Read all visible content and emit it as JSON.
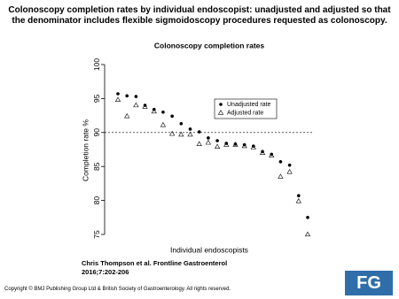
{
  "header": {
    "title": "Colonoscopy completion rates by individual endoscopist: unadjusted and adjusted so that the denominator includes flexible sigmoidoscopy procedures requested as colonoscopy."
  },
  "chart_data": {
    "type": "scatter",
    "title": "Colonoscopy completion rates",
    "x_label": "Individual endoscopists",
    "y_label": "Completion rate %",
    "categories": [
      null,
      null,
      null,
      null,
      null,
      null,
      null,
      null,
      null,
      null,
      null,
      null,
      null,
      null,
      null,
      null,
      null,
      null,
      null,
      null,
      null,
      null
    ],
    "series": [
      {
        "name": "Unadjusted rate",
        "color": "#000000",
        "marker": "circle",
        "values": [
          95.7,
          95.4,
          95.3,
          94.0,
          93.4,
          93.0,
          92.4,
          91.3,
          90.5,
          90.1,
          89.2,
          88.8,
          88.4,
          88.3,
          88.2,
          88.0,
          87.2,
          86.8,
          85.7,
          85.2,
          80.7,
          77.5
        ]
      },
      {
        "name": "Adjusted rate",
        "color": "#000000",
        "marker": "triangle",
        "values": [
          94.8,
          92.4,
          94.0,
          93.8,
          93.1,
          91.1,
          89.8,
          89.7,
          89.7,
          88.3,
          88.5,
          87.9,
          88.2,
          88.2,
          88.0,
          87.8,
          87.0,
          86.6,
          83.5,
          84.2,
          79.9,
          75.0
        ]
      }
    ],
    "ylim": [
      74,
      101
    ],
    "yticks": [
      75,
      80,
      85,
      90,
      95,
      100
    ],
    "hline": 90,
    "legend": "top right"
  },
  "citation": "Chris Thompson et al. Frontline Gastroenterol 2016;7:202-206",
  "copyright": "Copyright © BMJ Publishing Group Ltd & British Society of Gastroenterology. All rights reserved.",
  "logo": "FG"
}
